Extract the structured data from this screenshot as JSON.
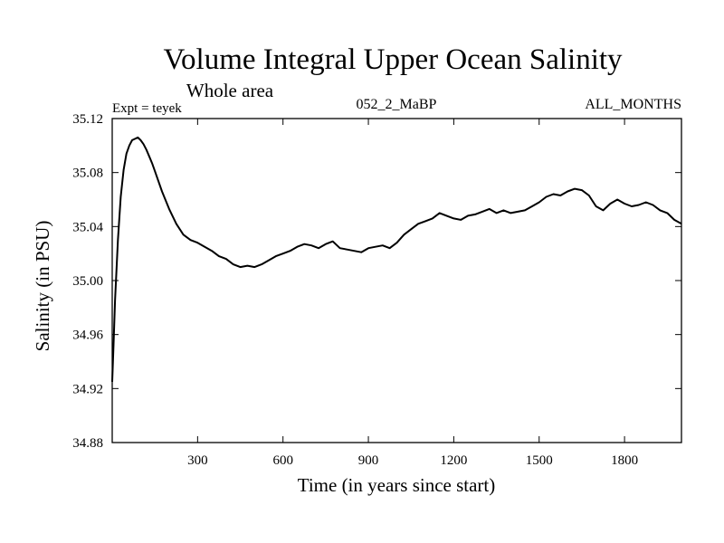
{
  "chart_data": {
    "type": "line",
    "title": "Volume Integral Upper Ocean Salinity",
    "subtitle": "Whole area",
    "left_label": "Expt = teyek",
    "center_label": "052_2_MaBP",
    "right_label": "ALL_MONTHS",
    "xlabel": "Time (in years since start)",
    "ylabel": "Salinity (in PSU)",
    "xlim": [
      0,
      2000
    ],
    "ylim": [
      34.88,
      35.12
    ],
    "x_ticks": [
      300,
      600,
      900,
      1200,
      1500,
      1800
    ],
    "x_tick_labels": [
      "300",
      "600",
      "900",
      "1200",
      "1500",
      "1800"
    ],
    "y_ticks": [
      34.88,
      34.92,
      34.96,
      35.0,
      35.04,
      35.08,
      35.12
    ],
    "y_tick_labels": [
      "34.88",
      "34.92",
      "34.96",
      "35.00",
      "35.04",
      "35.08",
      "35.12"
    ],
    "series": [
      {
        "name": "salinity",
        "x": [
          0,
          5,
          10,
          20,
          30,
          40,
          50,
          60,
          70,
          80,
          90,
          100,
          110,
          120,
          130,
          140,
          150,
          175,
          200,
          225,
          250,
          275,
          300,
          325,
          350,
          375,
          400,
          425,
          450,
          475,
          500,
          525,
          550,
          575,
          600,
          625,
          650,
          675,
          700,
          725,
          750,
          775,
          800,
          825,
          850,
          875,
          900,
          925,
          950,
          975,
          1000,
          1025,
          1050,
          1075,
          1100,
          1125,
          1150,
          1175,
          1200,
          1225,
          1250,
          1275,
          1300,
          1325,
          1350,
          1375,
          1400,
          1425,
          1450,
          1475,
          1500,
          1525,
          1550,
          1575,
          1600,
          1625,
          1650,
          1675,
          1700,
          1725,
          1750,
          1775,
          1800,
          1825,
          1850,
          1875,
          1900,
          1925,
          1950,
          1975,
          2000
        ],
        "y": [
          34.925,
          34.955,
          34.985,
          35.03,
          35.062,
          35.082,
          35.094,
          35.1,
          35.104,
          35.105,
          35.106,
          35.104,
          35.101,
          35.097,
          35.092,
          35.087,
          35.081,
          35.066,
          35.053,
          35.042,
          35.034,
          35.03,
          35.028,
          35.025,
          35.022,
          35.018,
          35.016,
          35.012,
          35.01,
          35.011,
          35.01,
          35.012,
          35.015,
          35.018,
          35.02,
          35.022,
          35.025,
          35.027,
          35.026,
          35.024,
          35.027,
          35.029,
          35.024,
          35.023,
          35.022,
          35.021,
          35.024,
          35.025,
          35.026,
          35.024,
          35.028,
          35.034,
          35.038,
          35.042,
          35.044,
          35.046,
          35.05,
          35.048,
          35.046,
          35.045,
          35.048,
          35.049,
          35.051,
          35.053,
          35.05,
          35.052,
          35.05,
          35.051,
          35.052,
          35.055,
          35.058,
          35.062,
          35.064,
          35.063,
          35.066,
          35.068,
          35.067,
          35.063,
          35.055,
          35.052,
          35.057,
          35.06,
          35.057,
          35.055,
          35.056,
          35.058,
          35.056,
          35.052,
          35.05,
          35.045,
          35.042
        ]
      }
    ]
  }
}
